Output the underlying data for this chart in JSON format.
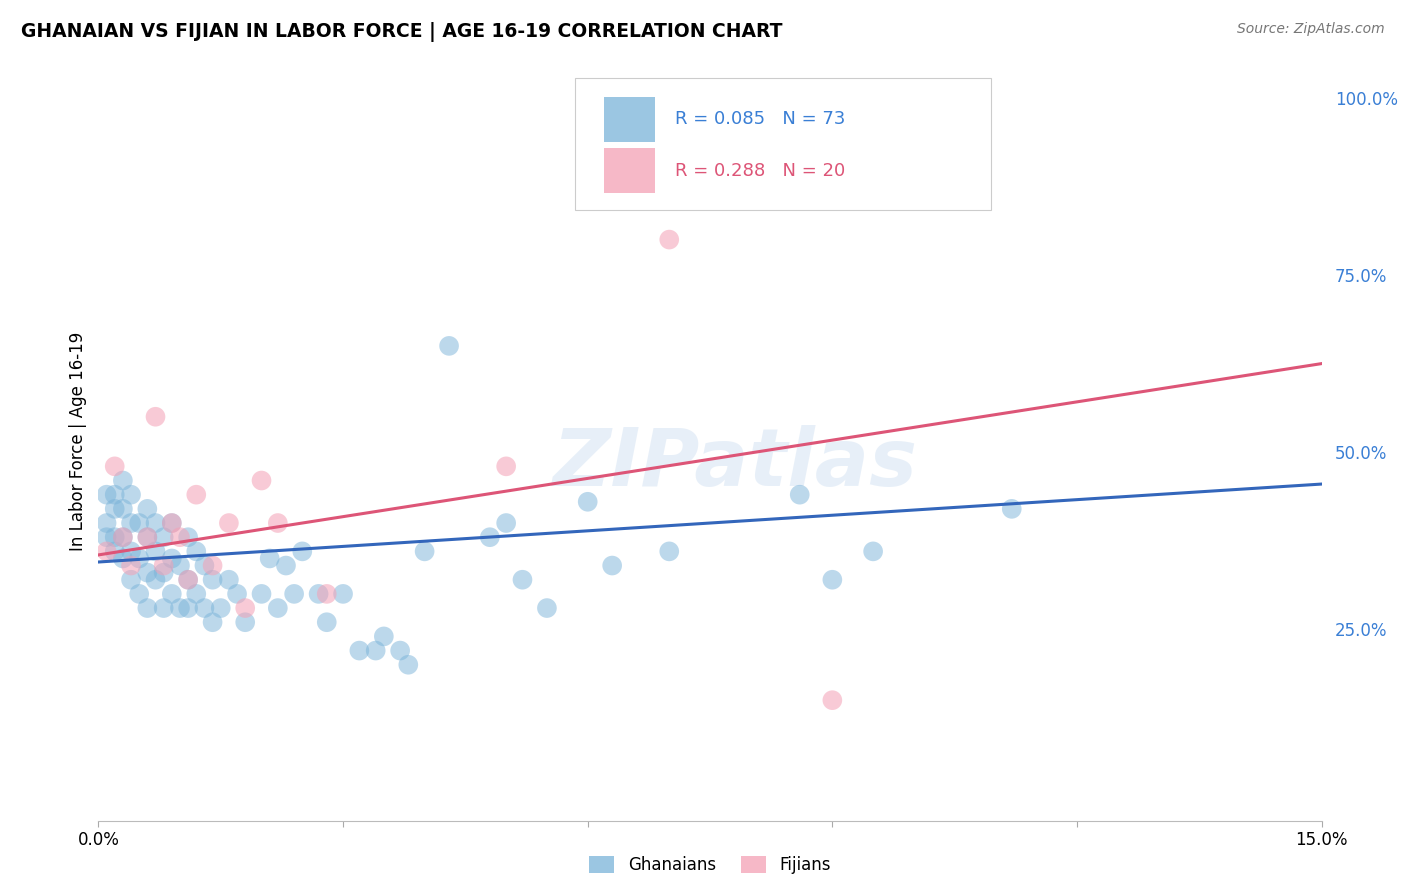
{
  "title": "GHANAIAN VS FIJIAN IN LABOR FORCE | AGE 16-19 CORRELATION CHART",
  "source": "Source: ZipAtlas.com",
  "ylabel": "In Labor Force | Age 16-19",
  "watermark": "ZIPatlas",
  "xlim": [
    0.0,
    0.15
  ],
  "ylim": [
    -0.02,
    1.05
  ],
  "xticks": [
    0.0,
    0.03,
    0.06,
    0.09,
    0.12,
    0.15
  ],
  "xticklabels": [
    "0.0%",
    "",
    "",
    "",
    "",
    "15.0%"
  ],
  "yticks_right": [
    0.25,
    0.5,
    0.75,
    1.0
  ],
  "yticklabels_right": [
    "25.0%",
    "50.0%",
    "75.0%",
    "100.0%"
  ],
  "blue_color": "#7ab3d9",
  "pink_color": "#f4a0b5",
  "blue_line_color": "#3366bb",
  "pink_line_color": "#dd5577",
  "background_color": "#ffffff",
  "grid_color": "#cccccc",
  "blue_scatter_x": [
    0.001,
    0.001,
    0.001,
    0.002,
    0.002,
    0.002,
    0.002,
    0.003,
    0.003,
    0.003,
    0.003,
    0.004,
    0.004,
    0.004,
    0.004,
    0.005,
    0.005,
    0.005,
    0.006,
    0.006,
    0.006,
    0.006,
    0.007,
    0.007,
    0.007,
    0.008,
    0.008,
    0.008,
    0.009,
    0.009,
    0.009,
    0.01,
    0.01,
    0.011,
    0.011,
    0.011,
    0.012,
    0.012,
    0.013,
    0.013,
    0.014,
    0.014,
    0.015,
    0.016,
    0.017,
    0.018,
    0.02,
    0.021,
    0.022,
    0.023,
    0.024,
    0.025,
    0.027,
    0.028,
    0.03,
    0.032,
    0.034,
    0.035,
    0.037,
    0.038,
    0.04,
    0.043,
    0.048,
    0.05,
    0.052,
    0.055,
    0.06,
    0.063,
    0.07,
    0.086,
    0.09,
    0.095,
    0.112
  ],
  "blue_scatter_y": [
    0.38,
    0.4,
    0.44,
    0.36,
    0.38,
    0.42,
    0.44,
    0.35,
    0.38,
    0.42,
    0.46,
    0.32,
    0.36,
    0.4,
    0.44,
    0.3,
    0.35,
    0.4,
    0.28,
    0.33,
    0.38,
    0.42,
    0.32,
    0.36,
    0.4,
    0.28,
    0.33,
    0.38,
    0.3,
    0.35,
    0.4,
    0.28,
    0.34,
    0.28,
    0.32,
    0.38,
    0.3,
    0.36,
    0.28,
    0.34,
    0.26,
    0.32,
    0.28,
    0.32,
    0.3,
    0.26,
    0.3,
    0.35,
    0.28,
    0.34,
    0.3,
    0.36,
    0.3,
    0.26,
    0.3,
    0.22,
    0.22,
    0.24,
    0.22,
    0.2,
    0.36,
    0.65,
    0.38,
    0.4,
    0.32,
    0.28,
    0.43,
    0.34,
    0.36,
    0.44,
    0.32,
    0.36,
    0.42
  ],
  "pink_scatter_x": [
    0.001,
    0.002,
    0.003,
    0.004,
    0.006,
    0.007,
    0.008,
    0.009,
    0.01,
    0.011,
    0.012,
    0.014,
    0.016,
    0.018,
    0.02,
    0.022,
    0.028,
    0.05,
    0.07,
    0.09
  ],
  "pink_scatter_y": [
    0.36,
    0.48,
    0.38,
    0.34,
    0.38,
    0.55,
    0.34,
    0.4,
    0.38,
    0.32,
    0.44,
    0.34,
    0.4,
    0.28,
    0.46,
    0.4,
    0.3,
    0.48,
    0.8,
    0.15
  ],
  "blue_line_x0": 0.0,
  "blue_line_y0": 0.345,
  "blue_line_x1": 0.15,
  "blue_line_y1": 0.455,
  "pink_line_x0": 0.0,
  "pink_line_y0": 0.355,
  "pink_line_x1": 0.15,
  "pink_line_y1": 0.625
}
